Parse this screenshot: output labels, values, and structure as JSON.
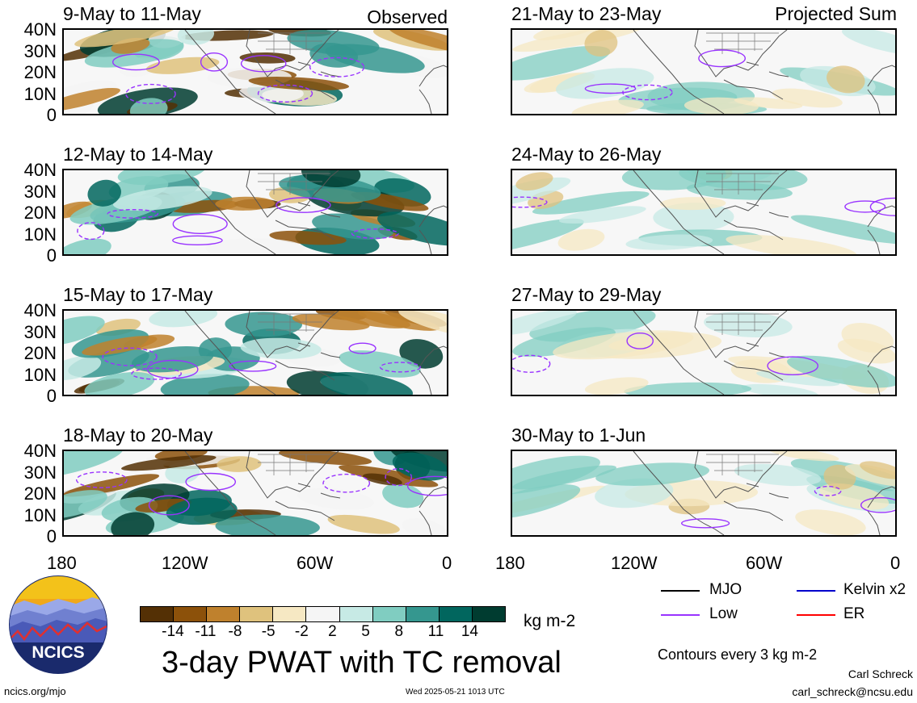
{
  "panels": {
    "left": [
      {
        "title": "9-May to 11-May",
        "tag": "Observed"
      },
      {
        "title": "12-May to 14-May",
        "tag": ""
      },
      {
        "title": "15-May to 17-May",
        "tag": ""
      },
      {
        "title": "18-May to 20-May",
        "tag": ""
      }
    ],
    "right": [
      {
        "title": "21-May to 23-May",
        "tag": "Projected Sum"
      },
      {
        "title": "24-May to 26-May",
        "tag": ""
      },
      {
        "title": "27-May to 29-May",
        "tag": ""
      },
      {
        "title": "30-May to 1-Jun",
        "tag": ""
      }
    ]
  },
  "lat_labels": [
    "40N",
    "30N",
    "20N",
    "10N",
    "0"
  ],
  "lon_labels": [
    "180",
    "120W",
    "60W",
    "0"
  ],
  "colorbar": {
    "ticks": [
      "-14",
      "-11",
      "-8",
      "-5",
      "-2",
      "2",
      "5",
      "8",
      "11",
      "14"
    ],
    "colors": [
      "#543005",
      "#8c510a",
      "#bf812d",
      "#dfc27d",
      "#f6e8c3",
      "#f5f5f5",
      "#c7eae5",
      "#80cdc1",
      "#35978f",
      "#01665e",
      "#003c30"
    ],
    "units": "kg m-2"
  },
  "legend": {
    "items": [
      {
        "label": "MJO",
        "color": "#000000"
      },
      {
        "label": "Kelvin x2",
        "color": "#0000cc"
      },
      {
        "label": "Low",
        "color": "#9933ff"
      },
      {
        "label": "ER",
        "color": "#ff0000"
      }
    ],
    "contour_note": "Contours every 3 kg m-2"
  },
  "main_title": "3-day PWAT with TC removal",
  "logo_text": "NCICS",
  "footer": {
    "left": "ncics.org/mjo",
    "center": "Wed 2025-05-21 1013 UTC",
    "author": "Carl Schreck",
    "email": "carl_schreck@ncsu.edu"
  }
}
